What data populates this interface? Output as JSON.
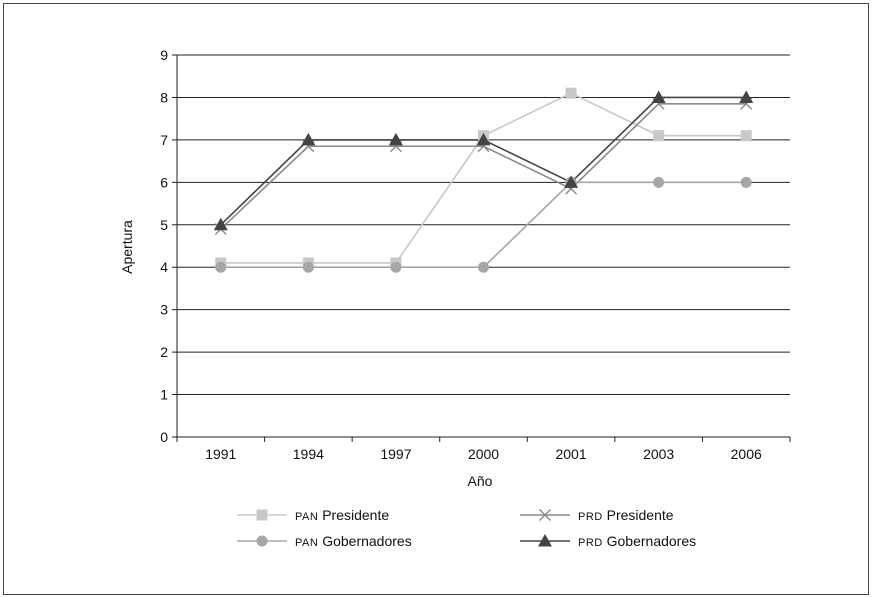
{
  "chart_data": {
    "type": "line",
    "title": "",
    "xlabel": "Año",
    "ylabel": "Apertura",
    "categories": [
      "1991",
      "1994",
      "1997",
      "2000",
      "2001",
      "2003",
      "2006"
    ],
    "ylim": [
      0,
      9
    ],
    "yticks": [
      0,
      1,
      2,
      3,
      4,
      5,
      6,
      7,
      8,
      9
    ],
    "grid": "horizontal",
    "legend_position": "bottom",
    "series": [
      {
        "prefix": "PAN",
        "label": "Presidente",
        "values": [
          4.1,
          4.1,
          4.1,
          7.1,
          8.1,
          7.1,
          7.1
        ],
        "color": "#c8c8c8",
        "marker": "square"
      },
      {
        "prefix": "PRD",
        "label": "Presidente",
        "values": [
          4.9,
          6.85,
          6.85,
          6.85,
          5.85,
          7.85,
          7.85
        ],
        "color": "#8a8a8a",
        "marker": "x"
      },
      {
        "prefix": "PAN",
        "label": "Gobernadores",
        "values": [
          4.0,
          4.0,
          4.0,
          4.0,
          6.0,
          6.0,
          6.0
        ],
        "color": "#a6a6a6",
        "marker": "circle"
      },
      {
        "prefix": "PRD",
        "label": "Gobernadores",
        "values": [
          5.0,
          7.0,
          7.0,
          7.0,
          6.0,
          8.0,
          8.0
        ],
        "color": "#444444",
        "marker": "triangle"
      }
    ]
  }
}
